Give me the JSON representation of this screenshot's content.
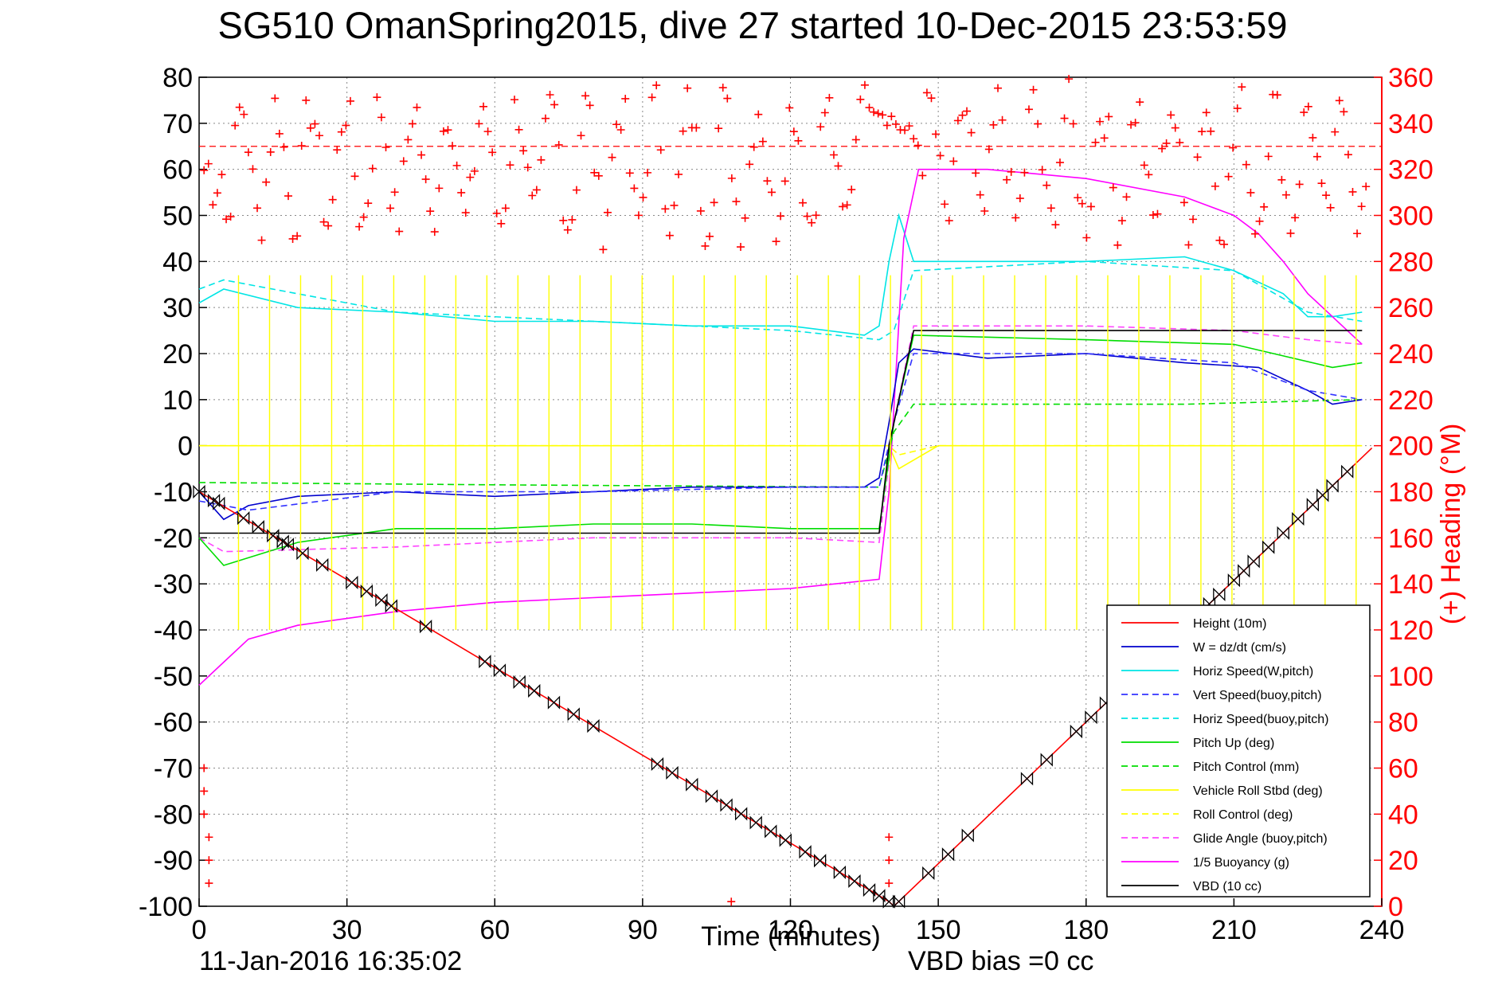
{
  "chart_data": {
    "type": "line",
    "title": "SG510 OmanSpring2015, dive 27 started 10-Dec-2015 23:53:59",
    "xlabel": "Time (minutes)",
    "ylabel_right": "(+) Heading (°M)",
    "x_ticks": [
      "0",
      "30",
      "60",
      "90",
      "120",
      "150",
      "180",
      "210",
      "240"
    ],
    "y_ticks": [
      "80",
      "70",
      "60",
      "50",
      "40",
      "30",
      "20",
      "10",
      "0",
      "-10",
      "-20",
      "-30",
      "-40",
      "-50",
      "-60",
      "-70",
      "-80",
      "-90",
      "-100"
    ],
    "y2_ticks": [
      "360",
      "340",
      "320",
      "300",
      "280",
      "260",
      "240",
      "220",
      "200",
      "180",
      "160",
      "140",
      "120",
      "100",
      "80",
      "60",
      "40",
      "20",
      "0"
    ],
    "xlim": [
      0,
      240
    ],
    "ylim": [
      -100,
      80
    ],
    "y2lim": [
      0,
      360
    ],
    "grid": true,
    "legend_position": "bottom-right",
    "footer_date": "11-Jan-2016 16:35:02",
    "footer_vbd": "VBD bias =0 cc",
    "series": [
      {
        "name": "Height (10m)",
        "color": "#ff0000",
        "style": "solid",
        "x": [
          0,
          140,
          141,
          238
        ],
        "y": [
          -10,
          -99,
          -100,
          -0.5
        ]
      },
      {
        "name": "W = dz/dt (cm/s)",
        "color": "#0000cc",
        "style": "solid",
        "x": [
          0,
          5,
          10,
          20,
          40,
          60,
          80,
          100,
          120,
          135,
          138,
          140,
          142,
          145,
          160,
          180,
          200,
          215,
          225,
          230,
          236
        ],
        "y": [
          -10,
          -16,
          -13,
          -11,
          -10,
          -11,
          -10,
          -9,
          -9,
          -9,
          -7,
          5,
          18,
          21,
          19,
          20,
          18,
          17,
          12,
          9,
          10
        ]
      },
      {
        "name": "Horiz Speed(W,pitch)",
        "color": "#00e5e5",
        "style": "solid",
        "x": [
          0,
          5,
          20,
          40,
          60,
          80,
          100,
          120,
          135,
          138,
          140,
          142,
          145,
          160,
          180,
          200,
          210,
          220,
          225,
          230,
          236
        ],
        "y": [
          31,
          34,
          30,
          29,
          27,
          27,
          26,
          26,
          24,
          26,
          40,
          50,
          40,
          40,
          40,
          41,
          38,
          33,
          28,
          28,
          29
        ]
      },
      {
        "name": "Vert Speed(buoy,pitch)",
        "color": "#3333ff",
        "style": "dashed",
        "x": [
          0,
          10,
          40,
          80,
          120,
          138,
          141,
          145,
          180,
          210,
          225,
          236
        ],
        "y": [
          -12,
          -14,
          -10,
          -10,
          -9,
          -9,
          5,
          20,
          20,
          18,
          12,
          10
        ]
      },
      {
        "name": "Horiz Speed(buoy,pitch)",
        "color": "#00e5e5",
        "style": "dashed",
        "x": [
          0,
          5,
          40,
          80,
          120,
          138,
          141,
          145,
          180,
          210,
          225,
          236
        ],
        "y": [
          34,
          36,
          29,
          27,
          25,
          23,
          25,
          38,
          40,
          38,
          29,
          27
        ]
      },
      {
        "name": "Pitch Up (deg)",
        "color": "#00dd00",
        "style": "solid",
        "x": [
          0,
          5,
          20,
          40,
          60,
          80,
          100,
          120,
          138,
          141,
          145,
          180,
          210,
          230,
          236
        ],
        "y": [
          -20,
          -26,
          -21,
          -18,
          -18,
          -17,
          -17,
          -18,
          -18,
          5,
          24,
          23,
          22,
          17,
          18
        ]
      },
      {
        "name": "Pitch Control (mm)",
        "color": "#00dd00",
        "style": "dashed",
        "x": [
          0,
          60,
          138,
          141,
          145,
          200,
          236
        ],
        "y": [
          -8,
          -8.5,
          -9,
          3,
          9,
          9,
          10
        ]
      },
      {
        "name": "Vehicle Roll Stbd (deg)",
        "color": "#ffff00",
        "style": "solid",
        "x": [
          0,
          140,
          142,
          150,
          236
        ],
        "y": [
          0,
          0,
          -5,
          0,
          0
        ]
      },
      {
        "name": "Roll Control (deg)",
        "color": "#ffff00",
        "style": "dashed",
        "x": [
          0,
          140,
          142,
          150,
          236
        ],
        "y": [
          0,
          0,
          -2,
          0,
          0
        ]
      },
      {
        "name": "Glide Angle (buoy,pitch)",
        "color": "#ff44ff",
        "style": "dashed",
        "x": [
          0,
          5,
          40,
          80,
          120,
          138,
          141,
          145,
          180,
          210,
          225,
          236
        ],
        "y": [
          -20,
          -23,
          -22,
          -20,
          -20,
          -21,
          5,
          26,
          26,
          25,
          23,
          22
        ]
      },
      {
        "name": "1/5 Buoyancy (g)",
        "color": "#ff00ff",
        "style": "solid",
        "x": [
          0,
          5,
          10,
          20,
          40,
          60,
          80,
          100,
          120,
          138,
          140,
          143,
          146,
          160,
          180,
          200,
          210,
          215,
          220,
          225,
          236
        ],
        "y": [
          -52,
          -47,
          -42,
          -39,
          -36,
          -34,
          -33,
          -32,
          -31,
          -29,
          -10,
          45,
          60,
          60,
          58,
          54,
          50,
          46,
          40,
          33,
          22
        ]
      },
      {
        "name": "VBD (10 cc)",
        "color": "#000000",
        "style": "solid",
        "x": [
          0,
          138,
          140,
          145,
          236
        ],
        "y": [
          -19,
          -19,
          0,
          25,
          25
        ]
      }
    ],
    "heading_reference": {
      "value": 330,
      "color": "#ff0000",
      "style": "dashed"
    },
    "heading_points_note": "red + markers plotted against right axis"
  }
}
